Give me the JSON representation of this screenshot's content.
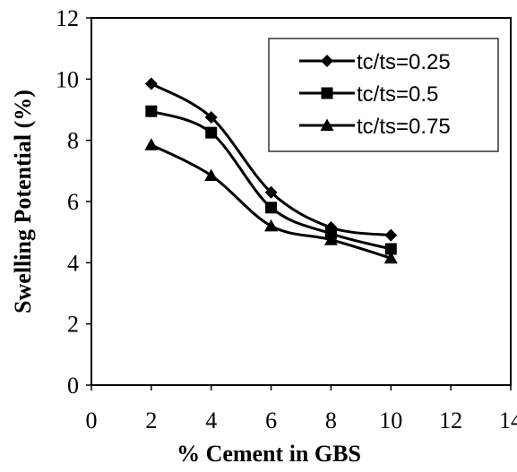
{
  "chart_data": {
    "type": "line",
    "title": "",
    "xlabel": "% Cement in GBS",
    "ylabel": "Swelling Potential (%)",
    "xlim": [
      0,
      14
    ],
    "ylim": [
      0,
      12
    ],
    "xticks": [
      "0",
      "2",
      "4",
      "6",
      "8",
      "10",
      "12",
      "14"
    ],
    "yticks": [
      "0",
      "2",
      "4",
      "6",
      "8",
      "10",
      "12"
    ],
    "x": [
      2,
      4,
      6,
      8,
      10
    ],
    "legend_position": "top-right",
    "grid": false,
    "series": [
      {
        "name": "tc/ts=0.25",
        "marker": "diamond",
        "values": [
          9.85,
          8.75,
          6.3,
          5.15,
          4.9
        ]
      },
      {
        "name": "tc/ts=0.5",
        "marker": "square",
        "values": [
          8.95,
          8.25,
          5.8,
          4.95,
          4.45
        ]
      },
      {
        "name": "tc/ts=0.75",
        "marker": "triangle",
        "values": [
          7.85,
          6.85,
          5.2,
          4.75,
          4.15
        ]
      }
    ],
    "line_color": "#000000"
  }
}
